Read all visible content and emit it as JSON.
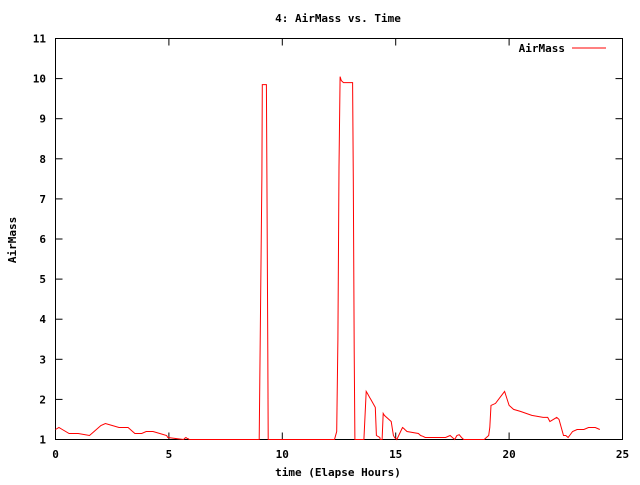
{
  "chart_data": {
    "type": "line",
    "title": "4: AirMass vs. Time",
    "xlabel": "time (Elapse Hours)",
    "ylabel": "AirMass",
    "xlim": [
      0,
      25
    ],
    "ylim": [
      1,
      11
    ],
    "xticks": [
      0,
      5,
      10,
      15,
      20,
      25
    ],
    "yticks": [
      1,
      2,
      3,
      4,
      5,
      6,
      7,
      8,
      9,
      10,
      11
    ],
    "grid": false,
    "legend_position": "top-right",
    "series": [
      {
        "name": "AirMass",
        "color": "#ff0000",
        "x": [
          0.0,
          0.15,
          0.3,
          0.45,
          0.6,
          0.7,
          1.0,
          1.5,
          1.7,
          2.0,
          2.2,
          2.5,
          2.8,
          3.2,
          3.4,
          3.5,
          3.8,
          4.0,
          4.3,
          4.6,
          4.9,
          4.95,
          5.65,
          5.7,
          5.75,
          5.8,
          5.85,
          5.9,
          8.98,
          9.02,
          9.1,
          9.12,
          9.15,
          9.3,
          9.32,
          9.36,
          9.38,
          9.42,
          12.3,
          12.4,
          12.45,
          12.5,
          12.55,
          12.6,
          12.7,
          12.8,
          13.0,
          13.1,
          13.13,
          13.17,
          13.2,
          13.25,
          13.6,
          13.7,
          13.75,
          13.85,
          13.9,
          14.1,
          14.15,
          14.3,
          14.32,
          14.4,
          14.45,
          14.5,
          14.8,
          14.9,
          14.95,
          15.05,
          15.3,
          15.35,
          15.4,
          15.5,
          16.0,
          16.1,
          16.2,
          16.3,
          17.2,
          17.4,
          17.6,
          17.7,
          17.8,
          17.9,
          18.0,
          18.9,
          19.0,
          19.1,
          19.15,
          19.2,
          19.4,
          19.6,
          19.8,
          20.0,
          20.2,
          20.5,
          21.0,
          21.5,
          21.7,
          21.8,
          22.1,
          22.2,
          22.4,
          22.5,
          22.6,
          22.8,
          23.0,
          23.3,
          23.5,
          23.8,
          24.0
        ],
        "y": [
          1.25,
          1.3,
          1.25,
          1.2,
          1.15,
          1.15,
          1.15,
          1.1,
          1.2,
          1.35,
          1.4,
          1.35,
          1.3,
          1.3,
          1.2,
          1.15,
          1.15,
          1.2,
          1.2,
          1.15,
          1.1,
          1.05,
          1.0,
          1.03,
          1.05,
          1.03,
          1.02,
          1.0,
          1.0,
          3.2,
          7.6,
          9.85,
          9.85,
          9.85,
          7.6,
          3.2,
          1.0,
          1.0,
          1.0,
          1.2,
          3.5,
          7.8,
          10.05,
          9.95,
          9.9,
          9.9,
          9.9,
          9.9,
          7.5,
          3.2,
          1.0,
          1.0,
          1.0,
          2.2,
          2.15,
          2.05,
          2.0,
          1.8,
          1.1,
          1.05,
          1.0,
          1.0,
          1.65,
          1.6,
          1.45,
          1.1,
          1.05,
          1.0,
          1.3,
          1.28,
          1.25,
          1.2,
          1.15,
          1.1,
          1.08,
          1.05,
          1.05,
          1.1,
          1.0,
          1.1,
          1.12,
          1.05,
          1.0,
          1.0,
          1.05,
          1.1,
          1.3,
          1.85,
          1.9,
          2.05,
          2.2,
          1.85,
          1.75,
          1.7,
          1.6,
          1.55,
          1.55,
          1.45,
          1.55,
          1.5,
          1.1,
          1.1,
          1.05,
          1.2,
          1.25,
          1.25,
          1.3,
          1.3,
          1.25
        ]
      }
    ]
  }
}
